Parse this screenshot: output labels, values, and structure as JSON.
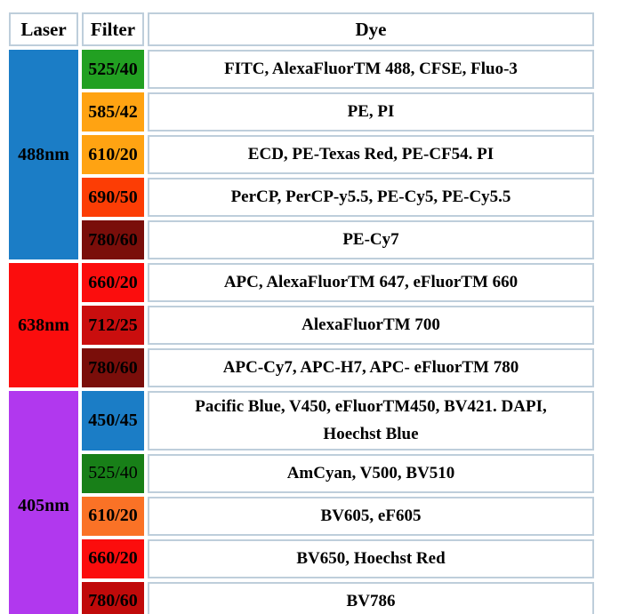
{
  "colors": {
    "laser_488": "#1b7dc6",
    "laser_638": "#fb0d0d",
    "laser_405": "#b138ee",
    "blue": "#1b7dc6",
    "green_bright": "#22a022",
    "green_dark": "#187f18",
    "orange": "#ffa312",
    "orange_red_690": "#fc3d05",
    "orange_red_610": "#fa7226",
    "red_bright": "#fb0d0d",
    "red_medium": "#ca0e0e",
    "red_dark": "#c00a0a",
    "maroon": "#7a0e0a",
    "cell_border": "#becedb"
  },
  "table": {
    "headers": {
      "laser": "Laser",
      "filter": "Filter",
      "dye": "Dye"
    },
    "groups": [
      {
        "laser": "488nm",
        "rows": [
          {
            "filter": "525/40",
            "dye": "FITC, AlexaFluorTM 488, CFSE, Fluo-3"
          },
          {
            "filter": "585/42",
            "dye": "PE, PI"
          },
          {
            "filter": "610/20",
            "dye": "ECD, PE-Texas Red, PE-CF54. PI"
          },
          {
            "filter": "690/50",
            "dye": "PerCP, PerCP-y5.5, PE-Cy5, PE-Cy5.5"
          },
          {
            "filter": "780/60",
            "dye": "PE-Cy7"
          }
        ]
      },
      {
        "laser": "638nm",
        "rows": [
          {
            "filter": "660/20",
            "dye": "APC, AlexaFluorTM 647, eFluorTM 660"
          },
          {
            "filter": "712/25",
            "dye": "AlexaFluorTM 700"
          },
          {
            "filter": "780/60",
            "dye": "APC-Cy7, APC-H7, APC- eFluorTM 780"
          }
        ]
      },
      {
        "laser": "405nm",
        "rows": [
          {
            "filter": "450/45",
            "dye_lines": [
              "Pacific Blue, V450, eFluorTM450, BV421. DAPI,",
              "Hoechst Blue"
            ]
          },
          {
            "filter": "525/40",
            "dye": "AmCyan, V500, BV510"
          },
          {
            "filter": "610/20",
            "dye": "BV605, eF605"
          },
          {
            "filter": "660/20",
            "dye": "BV650, Hoechst Red"
          },
          {
            "filter": "780/60",
            "dye": "BV786"
          }
        ]
      }
    ]
  },
  "chart_data": {
    "type": "table",
    "title": "Laser / Filter / Dye configuration",
    "columns": [
      "Laser",
      "Filter",
      "Dye"
    ],
    "rows": [
      [
        "488nm",
        "525/40",
        "FITC, AlexaFluorTM 488, CFSE, Fluo-3"
      ],
      [
        "488nm",
        "585/42",
        "PE, PI"
      ],
      [
        "488nm",
        "610/20",
        "ECD, PE-Texas Red, PE-CF54. PI"
      ],
      [
        "488nm",
        "690/50",
        "PerCP, PerCP-y5.5, PE-Cy5, PE-Cy5.5"
      ],
      [
        "488nm",
        "780/60",
        "PE-Cy7"
      ],
      [
        "638nm",
        "660/20",
        "APC, AlexaFluorTM 647, eFluorTM 660"
      ],
      [
        "638nm",
        "712/25",
        "AlexaFluorTM 700"
      ],
      [
        "638nm",
        "780/60",
        "APC-Cy7, APC-H7, APC- eFluorTM 780"
      ],
      [
        "405nm",
        "450/45",
        "Pacific Blue, V450, eFluorTM450, BV421. DAPI, Hoechst Blue"
      ],
      [
        "405nm",
        "525/40",
        "AmCyan, V500, BV510"
      ],
      [
        "405nm",
        "610/20",
        "BV605, eF605"
      ],
      [
        "405nm",
        "660/20",
        "BV650, Hoechst Red"
      ],
      [
        "405nm",
        "780/60",
        "BV786"
      ]
    ]
  }
}
